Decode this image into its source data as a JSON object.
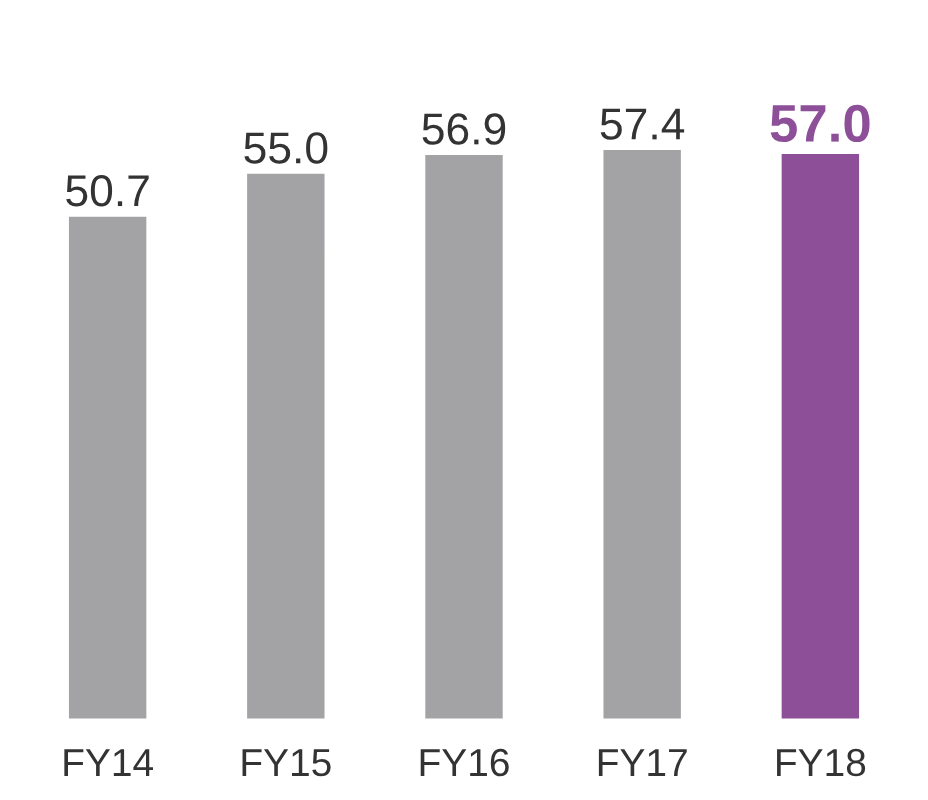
{
  "chart_data": {
    "type": "bar",
    "categories": [
      "FY14",
      "FY15",
      "FY16",
      "FY17",
      "FY18"
    ],
    "values": [
      50.7,
      55.0,
      56.9,
      57.4,
      57.0
    ],
    "colors": [
      "#a3a3a5",
      "#a3a3a5",
      "#a3a3a5",
      "#a3a3a5",
      "#8c4f98"
    ],
    "value_labels": [
      "50.7",
      "55.0",
      "56.9",
      "57.4",
      "57.0"
    ]
  }
}
